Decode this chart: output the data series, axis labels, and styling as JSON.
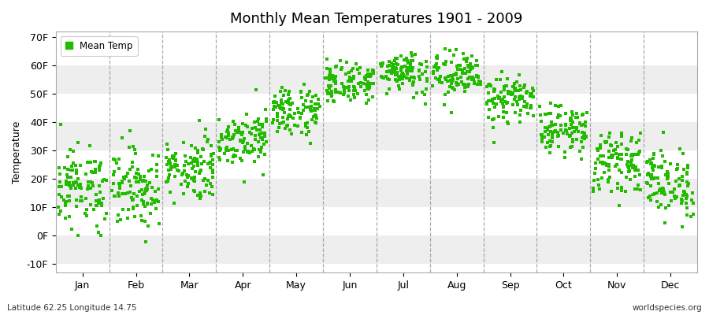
{
  "title": "Monthly Mean Temperatures 1901 - 2009",
  "ylabel": "Temperature",
  "xlabel_labels": [
    "Jan",
    "Feb",
    "Mar",
    "Apr",
    "May",
    "Jun",
    "Jul",
    "Aug",
    "Sep",
    "Oct",
    "Nov",
    "Dec"
  ],
  "legend_label": "Mean Temp",
  "dot_color": "#22bb00",
  "dot_size": 5,
  "yticks": [
    -10,
    0,
    10,
    20,
    30,
    40,
    50,
    60,
    70
  ],
  "ytick_labels": [
    "-10F",
    "0F",
    "10F",
    "20F",
    "30F",
    "40F",
    "50F",
    "60F",
    "70F"
  ],
  "ylim": [
    -13,
    72
  ],
  "fig_bg_color": "#ffffff",
  "plot_bg_color": "#ffffff",
  "band_color_alt": "#eeeeee",
  "dashed_line_color": "#888888",
  "bottom_left_text": "Latitude 62.25 Longitude 14.75",
  "bottom_right_text": "worldspecies.org",
  "monthly_means_F": [
    17.0,
    17.0,
    24.0,
    34.5,
    44.0,
    54.0,
    58.0,
    56.5,
    48.0,
    37.5,
    26.0,
    18.5
  ],
  "monthly_std_F": [
    7.0,
    7.0,
    5.5,
    4.5,
    4.5,
    3.5,
    3.5,
    4.0,
    4.0,
    4.0,
    5.0,
    6.0
  ],
  "n_years": 109
}
